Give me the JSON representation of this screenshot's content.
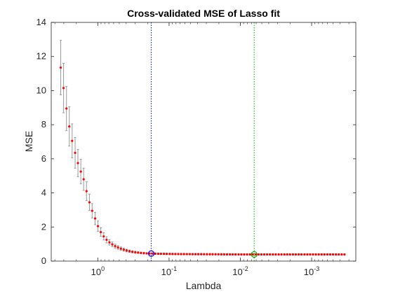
{
  "chart_data": {
    "type": "scatter",
    "title": "Cross-validated MSE of Lasso fit",
    "xlabel": "Lambda",
    "ylabel": "MSE",
    "x_scale": "log",
    "x_reversed": true,
    "xlim": [
      0.00024,
      4.5
    ],
    "ylim": [
      0,
      14
    ],
    "y_ticks": [
      0,
      2,
      4,
      6,
      8,
      10,
      12,
      14
    ],
    "x_ticks": [
      {
        "value": 1,
        "base": "10",
        "exponent": "0"
      },
      {
        "value": 0.1,
        "base": "10",
        "exponent": "-1"
      },
      {
        "value": 0.01,
        "base": "10",
        "exponent": "-2"
      },
      {
        "value": 0.001,
        "base": "10",
        "exponent": "-3"
      }
    ],
    "grid": false,
    "series": [
      {
        "lambda": [
          3.31,
          3.02,
          2.75,
          2.51,
          2.29,
          2.08,
          1.9,
          1.73,
          1.58,
          1.44,
          1.31,
          1.2,
          1.09,
          0.995,
          0.907,
          0.826,
          0.753,
          0.687,
          0.626,
          0.57,
          0.52,
          0.474,
          0.432,
          0.394,
          0.359,
          0.327,
          0.298,
          0.272,
          0.248,
          0.226,
          0.206,
          0.188,
          0.171,
          0.156,
          0.142,
          0.13,
          0.118,
          0.108,
          0.098,
          0.0895,
          0.0816,
          0.0743,
          0.0678,
          0.0618,
          0.0563,
          0.0513,
          0.0468,
          0.0426,
          0.0389,
          0.0354,
          0.0323,
          0.0294,
          0.0268,
          0.0245,
          0.0223,
          0.0203,
          0.0185,
          0.0169,
          0.0154,
          0.014,
          0.0128,
          0.0117,
          0.0106,
          0.00968,
          0.00883,
          0.00805,
          0.00733,
          0.00669,
          0.00609,
          0.00556,
          0.00507,
          0.00462,
          0.00421,
          0.00384,
          0.0035,
          0.00319,
          0.0029,
          0.00265,
          0.00241,
          0.0022,
          0.00201,
          0.00183,
          0.00167,
          0.00152,
          0.00139,
          0.00126,
          0.00115,
          0.00105,
          0.000957,
          0.000872,
          0.000795,
          0.000725,
          0.000661,
          0.000602,
          0.000549,
          0.000501,
          0.000456,
          0.000416,
          0.000379,
          0.000346
        ],
        "mse": [
          11.35,
          10.15,
          8.95,
          7.9,
          7.05,
          6.35,
          5.75,
          5.25,
          4.8,
          4.1,
          3.45,
          2.95,
          2.5,
          2.05,
          1.7,
          1.45,
          1.25,
          1.1,
          0.98,
          0.88,
          0.8,
          0.73,
          0.67,
          0.62,
          0.58,
          0.545,
          0.52,
          0.5,
          0.48,
          0.465,
          0.455,
          0.445,
          0.44,
          0.435,
          0.43,
          0.428,
          0.425,
          0.423,
          0.42,
          0.418,
          0.415,
          0.414,
          0.412,
          0.41,
          0.409,
          0.408,
          0.407,
          0.406,
          0.405,
          0.404,
          0.403,
          0.402,
          0.401,
          0.4,
          0.399,
          0.398,
          0.397,
          0.396,
          0.395,
          0.394,
          0.393,
          0.392,
          0.392,
          0.392,
          0.392,
          0.392,
          0.392,
          0.392,
          0.392,
          0.392,
          0.392,
          0.392,
          0.392,
          0.392,
          0.392,
          0.392,
          0.392,
          0.392,
          0.392,
          0.392,
          0.392,
          0.392,
          0.392,
          0.392,
          0.392,
          0.392,
          0.392,
          0.392,
          0.392,
          0.392,
          0.392,
          0.392,
          0.392,
          0.392,
          0.392,
          0.392,
          0.392,
          0.392,
          0.392,
          0.392
        ],
        "se": [
          1.6,
          1.45,
          1.3,
          1.15,
          1.0,
          0.9,
          0.8,
          0.72,
          0.65,
          0.55,
          0.48,
          0.42,
          0.36,
          0.3,
          0.25,
          0.21,
          0.18,
          0.16,
          0.14,
          0.12,
          0.11,
          0.1,
          0.09,
          0.08,
          0.07,
          0.06,
          0.06,
          0.05,
          0.05,
          0.05,
          0.04,
          0.04,
          0.04,
          0.04,
          0.04,
          0.04,
          0.04,
          0.04,
          0.04,
          0.04,
          0.04,
          0.04,
          0.04,
          0.04,
          0.04,
          0.04,
          0.04,
          0.04,
          0.04,
          0.04,
          0.04,
          0.04,
          0.04,
          0.04,
          0.04,
          0.04,
          0.04,
          0.04,
          0.04,
          0.04,
          0.04,
          0.04,
          0.04,
          0.04,
          0.04,
          0.04,
          0.04,
          0.04,
          0.04,
          0.04,
          0.04,
          0.04,
          0.04,
          0.04,
          0.04,
          0.04,
          0.04,
          0.04,
          0.04,
          0.04,
          0.04,
          0.04,
          0.04,
          0.04,
          0.04,
          0.04,
          0.04,
          0.04,
          0.04,
          0.04,
          0.04,
          0.04,
          0.04,
          0.04,
          0.04,
          0.04,
          0.04,
          0.04,
          0.04,
          0.04
        ]
      }
    ],
    "reference_lines": [
      {
        "lambda": 0.178,
        "color": "#0000ff",
        "style": "dotted",
        "mse": 0.44
      },
      {
        "lambda": 0.0064,
        "color": "#00aa00",
        "style": "dotted",
        "mse": 0.392
      }
    ],
    "colors": {
      "points": "#ff0000",
      "error_bars": "#999999",
      "axes": "#262626"
    }
  }
}
